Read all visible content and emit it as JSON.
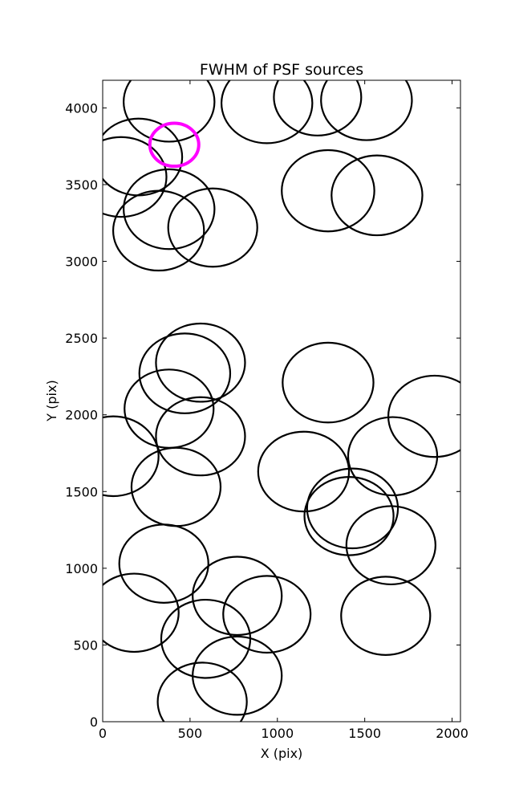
{
  "chart_data": {
    "type": "scatter",
    "title": "FWHM of PSF sources",
    "xlabel": "X (pix)",
    "ylabel": "Y (pix)",
    "xlim": [
      0,
      2048
    ],
    "ylim": [
      0,
      4180
    ],
    "xticks": [
      0,
      500,
      1000,
      1500,
      2000
    ],
    "yticks": [
      0,
      500,
      1000,
      1500,
      2000,
      2500,
      3000,
      3500,
      4000
    ],
    "grid": false,
    "marker": "circle, radius proportional to FWHM",
    "default_color": "#000000",
    "highlight_color": "#ff00ff",
    "points": [
      {
        "x": 380,
        "y": 4040,
        "r": 260
      },
      {
        "x": 940,
        "y": 4030,
        "r": 260
      },
      {
        "x": 1230,
        "y": 4070,
        "r": 250
      },
      {
        "x": 1510,
        "y": 4050,
        "r": 260
      },
      {
        "x": 205,
        "y": 3680,
        "r": 250
      },
      {
        "x": 105,
        "y": 3550,
        "r": 260
      },
      {
        "x": 380,
        "y": 3340,
        "r": 260
      },
      {
        "x": 320,
        "y": 3200,
        "r": 260
      },
      {
        "x": 630,
        "y": 3220,
        "r": 255
      },
      {
        "x": 1290,
        "y": 3460,
        "r": 265
      },
      {
        "x": 1570,
        "y": 3430,
        "r": 260
      },
      {
        "x": 60,
        "y": 1730,
        "r": 260
      },
      {
        "x": 380,
        "y": 2040,
        "r": 255
      },
      {
        "x": 470,
        "y": 2270,
        "r": 260
      },
      {
        "x": 560,
        "y": 2340,
        "r": 255
      },
      {
        "x": 560,
        "y": 1860,
        "r": 255
      },
      {
        "x": 420,
        "y": 1530,
        "r": 255
      },
      {
        "x": 1290,
        "y": 2210,
        "r": 260
      },
      {
        "x": 1150,
        "y": 1630,
        "r": 260
      },
      {
        "x": 1430,
        "y": 1390,
        "r": 260
      },
      {
        "x": 1410,
        "y": 1340,
        "r": 255
      },
      {
        "x": 1660,
        "y": 1730,
        "r": 255
      },
      {
        "x": 1900,
        "y": 1990,
        "r": 265
      },
      {
        "x": 1650,
        "y": 1150,
        "r": 255
      },
      {
        "x": 1620,
        "y": 690,
        "r": 255
      },
      {
        "x": 350,
        "y": 1030,
        "r": 255
      },
      {
        "x": 180,
        "y": 710,
        "r": 255
      },
      {
        "x": 770,
        "y": 820,
        "r": 255
      },
      {
        "x": 940,
        "y": 700,
        "r": 250
      },
      {
        "x": 590,
        "y": 540,
        "r": 255
      },
      {
        "x": 770,
        "y": 300,
        "r": 255
      },
      {
        "x": 570,
        "y": 130,
        "r": 255
      },
      {
        "x": 410,
        "y": 3760,
        "r": 140,
        "highlight": true
      }
    ]
  }
}
